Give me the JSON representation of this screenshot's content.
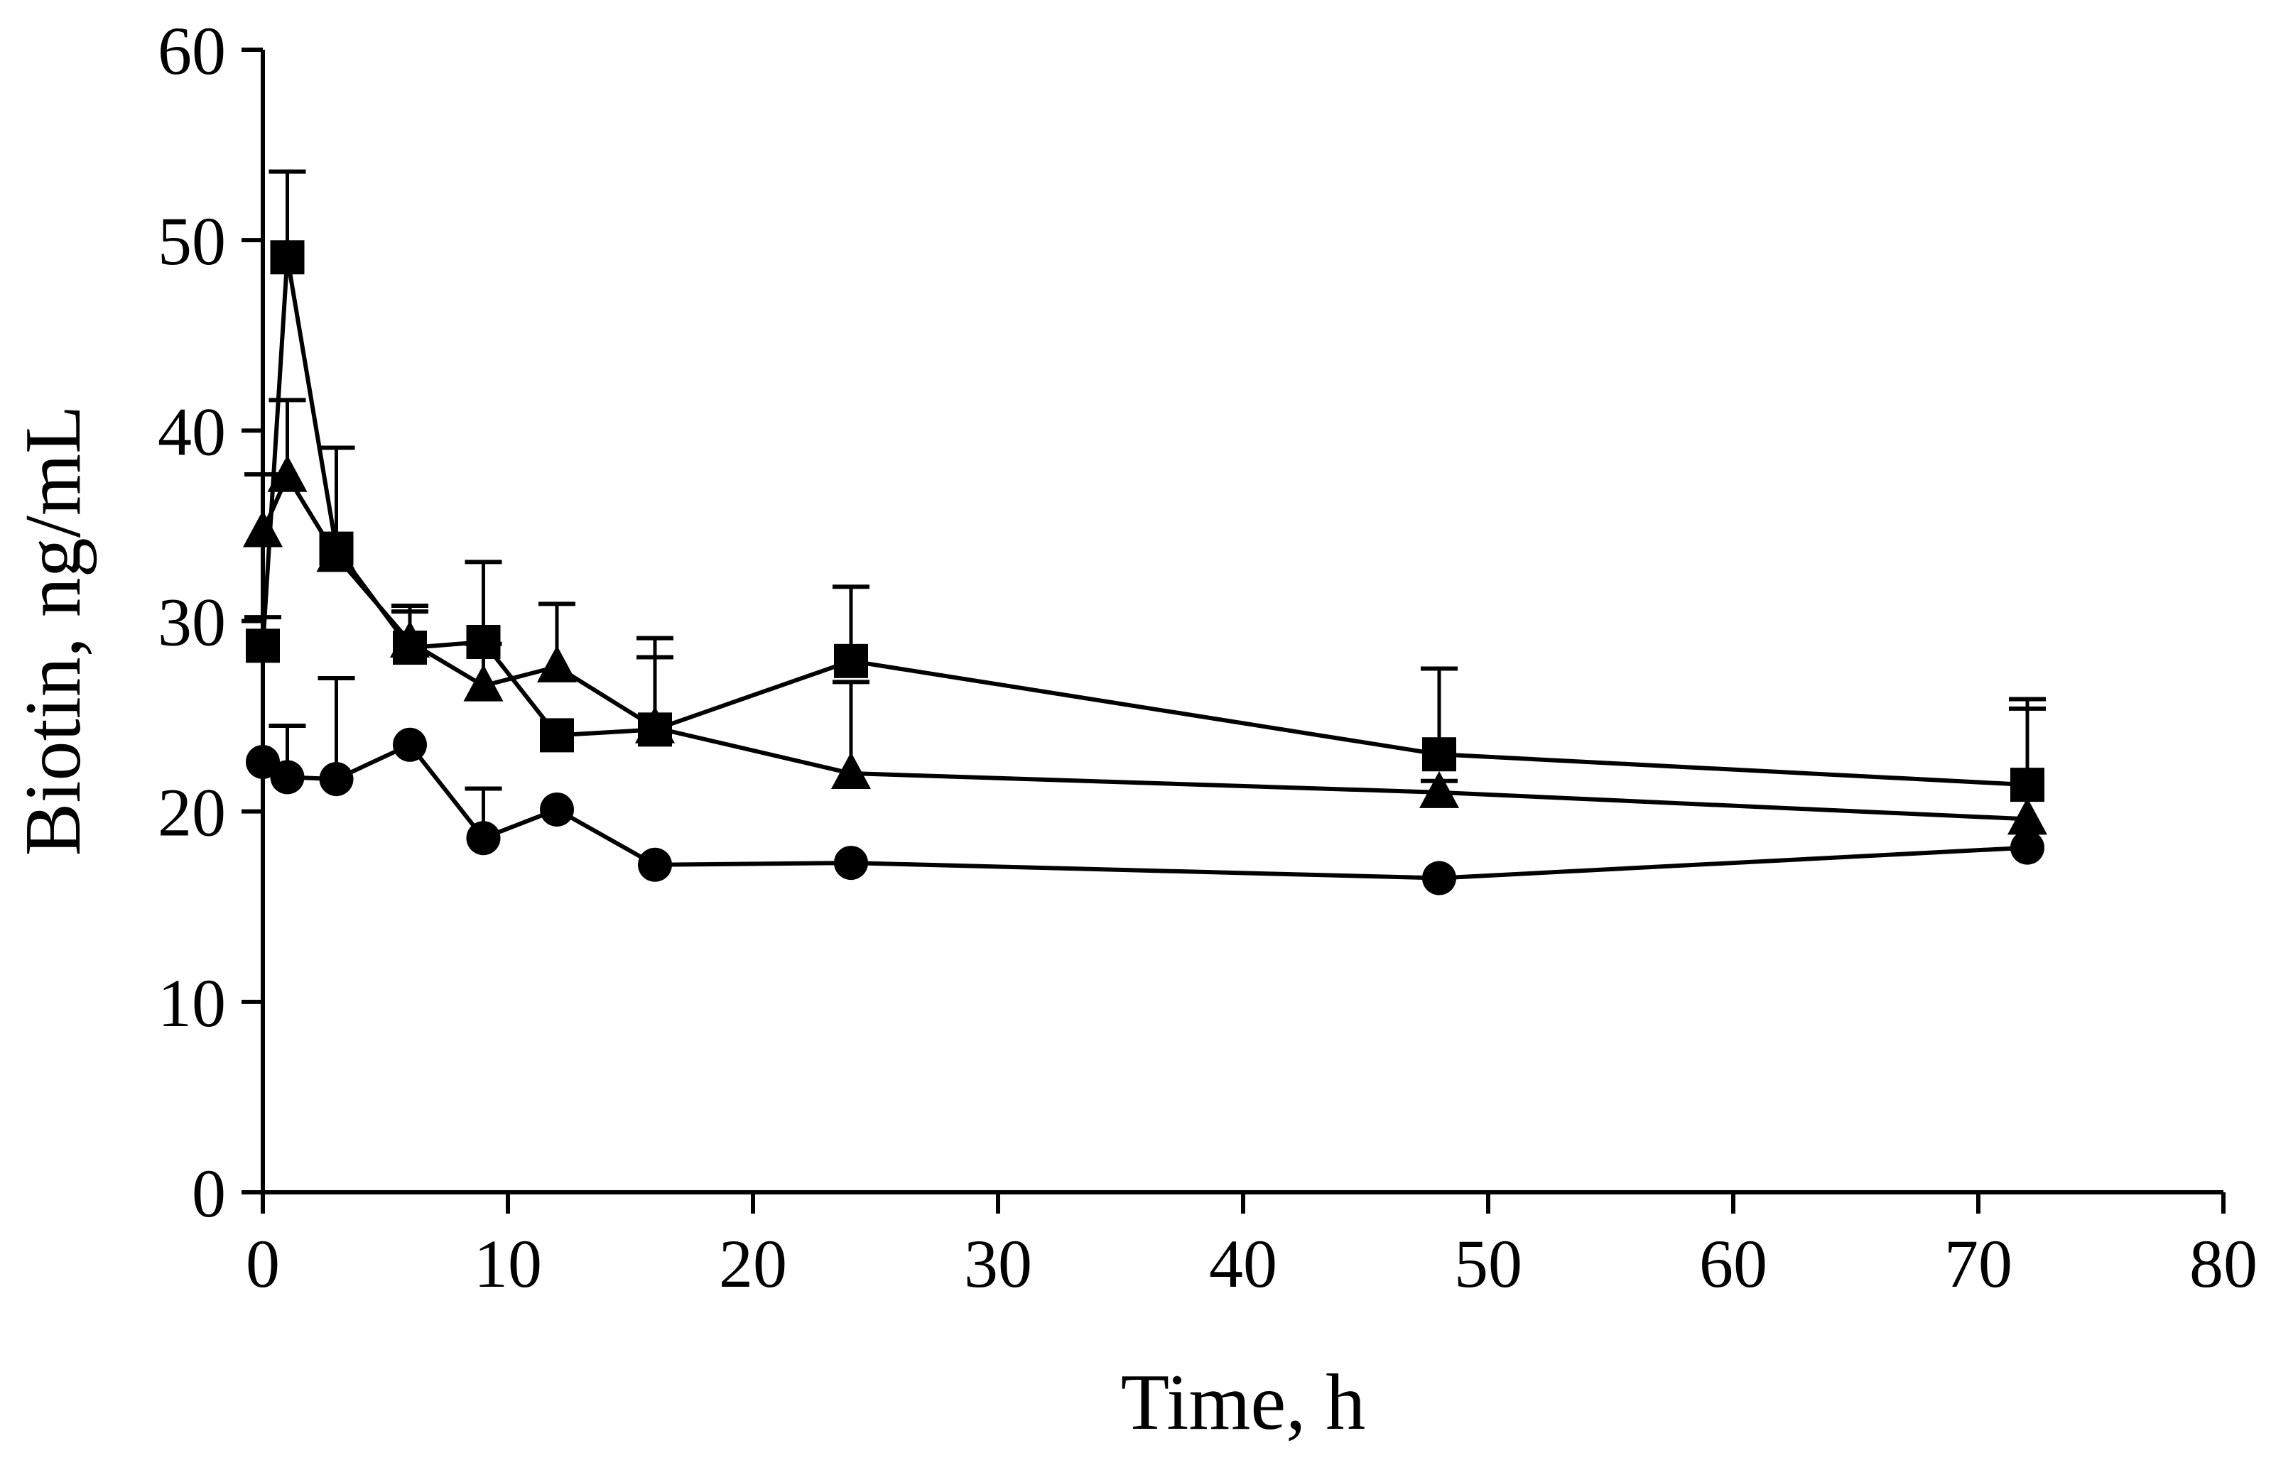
{
  "chart_data": {
    "type": "line",
    "title": "",
    "xlabel": "Time, h",
    "ylabel": "Biotin, ng/mL",
    "xlim": [
      0,
      80
    ],
    "ylim": [
      0,
      60
    ],
    "xticks": [
      0,
      10,
      20,
      30,
      40,
      50,
      60,
      70,
      80
    ],
    "yticks": [
      0,
      10,
      20,
      30,
      40,
      50,
      60
    ],
    "grid": false,
    "legend": "none",
    "x": [
      0,
      1,
      3,
      6,
      9,
      12,
      16,
      24,
      48,
      72
    ],
    "series": [
      {
        "name": "Square markers",
        "marker": "square",
        "values": [
          28.7,
          49.1,
          33.8,
          28.6,
          28.9,
          24.0,
          24.3,
          27.9,
          23.0,
          21.4
        ],
        "error_upper": [
          1.5,
          4.5,
          5.3,
          2.2,
          4.2,
          0,
          4.8,
          3.9,
          4.5,
          4.5
        ]
      },
      {
        "name": "Triangle markers",
        "marker": "triangle",
        "values": [
          34.7,
          37.6,
          33.4,
          28.9,
          26.6,
          27.6,
          24.4,
          22.0,
          21.0,
          19.6
        ],
        "error_upper": [
          3.0,
          4.0,
          5.7,
          1.6,
          2.2,
          3.3,
          3.7,
          4.8,
          0.6,
          5.8
        ]
      },
      {
        "name": "Circle markers",
        "marker": "circle",
        "values": [
          22.6,
          21.8,
          21.7,
          23.5,
          18.6,
          20.1,
          17.2,
          17.3,
          16.5,
          18.1
        ],
        "error_upper": [
          0,
          2.7,
          5.3,
          0,
          2.6,
          0,
          0,
          0,
          0,
          0
        ]
      }
    ]
  }
}
